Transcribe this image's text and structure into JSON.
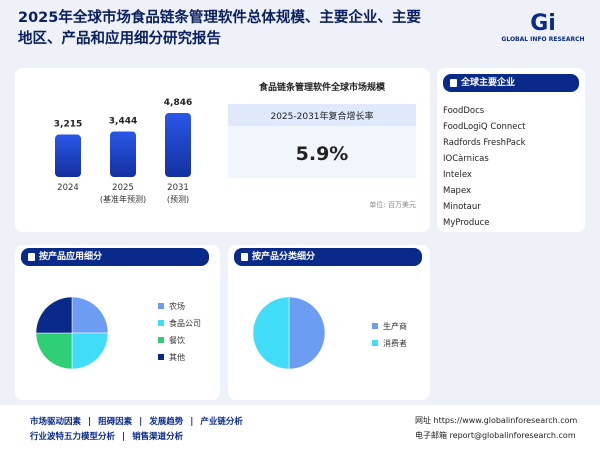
{
  "header": {
    "title_line1": "2025年全球市场食品链条管理软件总体规模、主要企业、主要",
    "title_line2": "地区、产品和应用细分研究报告",
    "logo": "GLOBAL INFO RESEARCH"
  },
  "chart_data": [
    {
      "type": "bar",
      "title": "食品链条管理软件全球市场规模",
      "categories": [
        "2024",
        "2025",
        "2031"
      ],
      "notes": [
        null,
        "(基准年预测)",
        "(预测)"
      ],
      "values": [
        3215,
        3444,
        4846
      ],
      "value_labels": [
        "3,215",
        "3,444",
        "4,846"
      ],
      "color": "#1f47d6",
      "cagr_title": "2025-2031年复合增长率",
      "cagr": "5.9%",
      "unit": "单位: 百万美元"
    },
    {
      "type": "pie",
      "title": "按产品应用细分",
      "categories": [
        "农场",
        "食品公司",
        "餐饮",
        "其他"
      ],
      "values": [
        25,
        25,
        25,
        25
      ],
      "colors": [
        "#6d9cf3",
        "#41dcf7",
        "#2fcf75",
        "#0a2a8a"
      ]
    },
    {
      "type": "pie",
      "title": "按产品分类细分",
      "categories": [
        "生产商",
        "消费者"
      ],
      "values": [
        50,
        50
      ],
      "colors": [
        "#6d9cf3",
        "#41dcf7"
      ]
    }
  ],
  "companies": {
    "title": "全球主要企业",
    "items": [
      "FoodDocs",
      "FoodLogiQ Connect",
      "Radfords FreshPack",
      "IOCàrnicas",
      "Intelex",
      "Mapex",
      "Minotaur",
      "MyProduce"
    ]
  },
  "footer": {
    "links_row1": [
      "市场驱动因素",
      "阻碍因素",
      "发展趋势",
      "产业链分析"
    ],
    "links_row2": [
      "行业波特五力模型分析",
      "销售渠道分析"
    ],
    "website_label": "网址",
    "website": "https://www.globalinforesearch.com",
    "email_label": "电子邮箱",
    "email": "report@globalinforesearch.com"
  }
}
